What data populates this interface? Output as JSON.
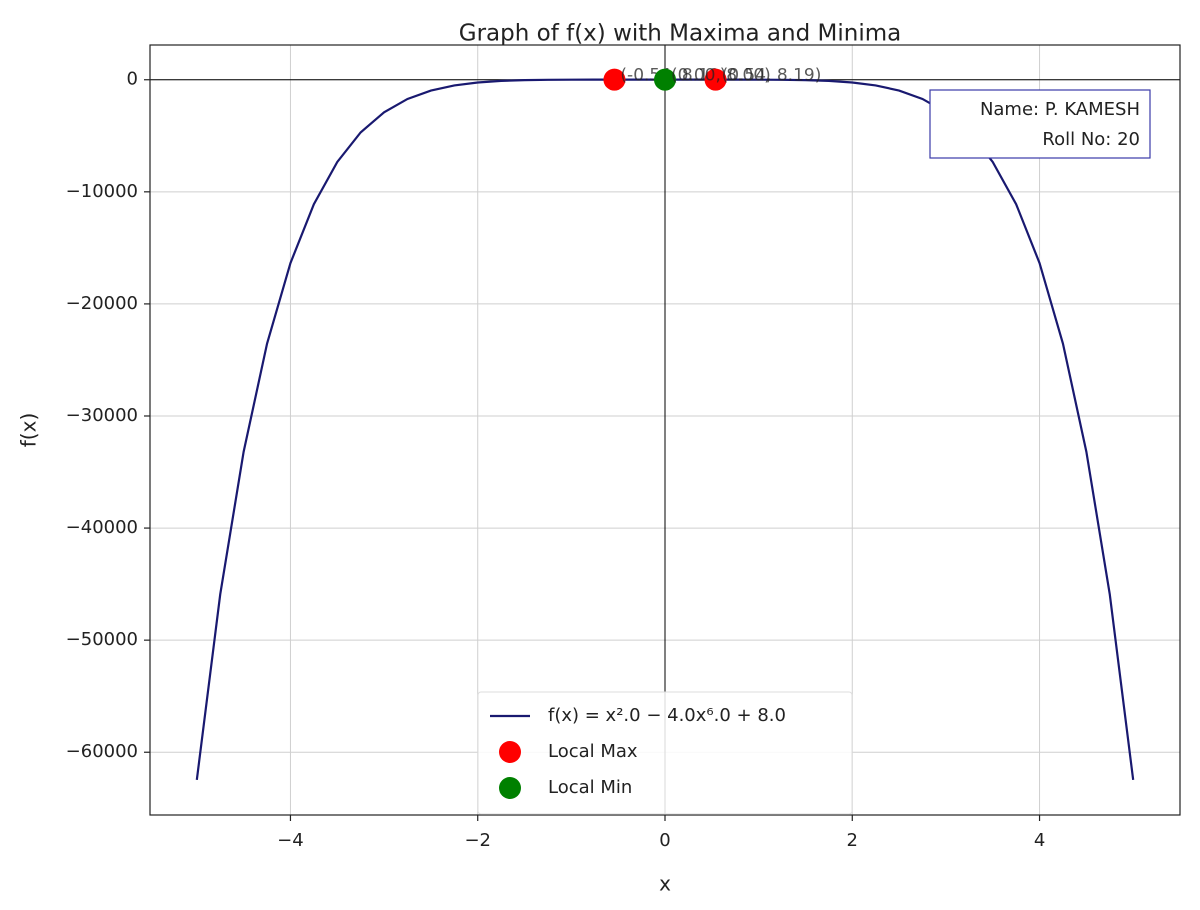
{
  "chart_data": {
    "type": "line",
    "title": "Graph of f(x) with Maxima and Minima",
    "xlabel": "x",
    "ylabel": "f(x)",
    "x": [
      -5,
      -4.75,
      -4.5,
      -4.25,
      -4,
      -3.75,
      -3.5,
      -3.25,
      -3,
      -2.75,
      -2.5,
      -2.25,
      -2,
      -1.75,
      -1.5,
      -1.25,
      -1,
      -0.75,
      -0.5,
      -0.25,
      0,
      0.25,
      0.5,
      0.75,
      1,
      1.25,
      1.5,
      1.75,
      2,
      2.25,
      2.5,
      2.75,
      3,
      3.25,
      3.5,
      3.75,
      4,
      4.25,
      4.5,
      4.75,
      5
    ],
    "series": [
      {
        "name": "f(x) = x².0 − 4.0x⁶.0 + 8.0",
        "type": "line",
        "color": "#191970",
        "values": [
          -62467,
          -45912.69,
          -33186.81,
          -23545.78,
          -16360,
          -11101.5,
          -7332.81,
          -4695.1,
          -2899,
          -1714.5,
          -962.3,
          -505.9,
          -244,
          -103.8,
          -35.3,
          -5.7,
          5,
          7.85,
          8.19,
          8.06,
          8,
          8.06,
          8.19,
          7.85,
          5,
          -5.7,
          -35.3,
          -103.8,
          -244,
          -505.9,
          -962.3,
          -1714.5,
          -2899,
          -4695.1,
          -7332.81,
          -11101.5,
          -16360,
          -23545.78,
          -33186.81,
          -45912.69,
          -62467
        ]
      },
      {
        "name": "Local Max",
        "type": "scatter",
        "color": "#ff0000",
        "x": [
          -0.54,
          0.54
        ],
        "values": [
          8.19,
          8.19
        ],
        "value_labels": [
          "(-0.54, 8.19)",
          "(0.54, 8.19)"
        ]
      },
      {
        "name": "Local Min",
        "type": "scatter",
        "color": "#008000",
        "x": [
          0
        ],
        "values": [
          8
        ],
        "value_labels": [
          "(0.00, 8.00)"
        ]
      }
    ],
    "annotation": [
      "Name: P. KAMESH",
      "Roll No: 20"
    ],
    "xlim": [
      -5.5,
      5.5
    ],
    "ylim": [
      -65600,
      3100
    ],
    "xticks": [
      {
        "value": -4,
        "label": "−4"
      },
      {
        "value": -2,
        "label": "−2"
      },
      0,
      2,
      4
    ],
    "yticks": [
      0,
      {
        "value": -10000,
        "label": "−10000"
      },
      {
        "value": -20000,
        "label": "−20000"
      },
      {
        "value": -30000,
        "label": "−30000"
      },
      {
        "value": -40000,
        "label": "−40000"
      },
      {
        "value": -50000,
        "label": "−50000"
      },
      {
        "value": -60000,
        "label": "−60000"
      }
    ],
    "grid": true,
    "zero_lines": true,
    "legend": "lower center"
  }
}
